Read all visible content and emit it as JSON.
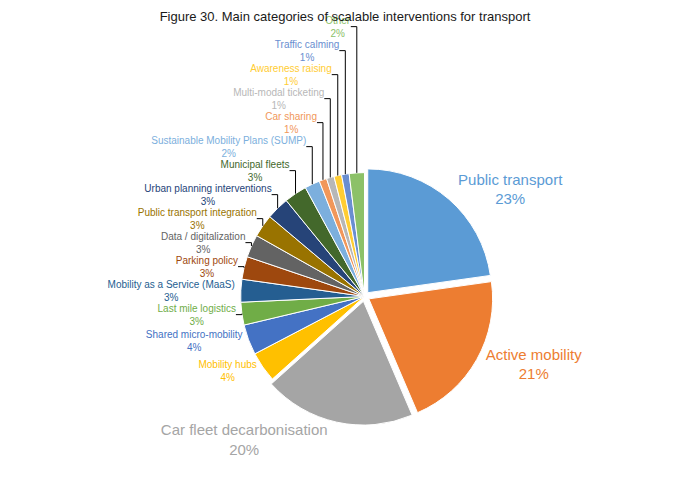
{
  "chart_data": {
    "type": "pie",
    "title": "Figure 30. Main categories of scalable interventions for transport",
    "categories": [
      "Public transport",
      "Active mobility",
      "Car fleet decarbonisation",
      "Mobility hubs",
      "Shared micro-mobility",
      "Last mile logistics",
      "Mobility as a Service (MaaS)",
      "Parking policy",
      "Data / digitalization",
      "Public transport integration",
      "Urban planning interventions",
      "Municipal fleets",
      "Sustainable Mobility Plans (SUMP)",
      "Car sharing",
      "Multi-modal ticketing",
      "Awareness raising",
      "Traffic calming",
      "Other"
    ],
    "values": [
      23,
      21,
      20,
      4,
      4,
      3,
      3,
      3,
      3,
      3,
      3,
      3,
      2,
      1,
      1,
      1,
      1,
      2
    ],
    "value_labels": [
      "23%",
      "21%",
      "20%",
      "4%",
      "4%",
      "3%",
      "3%",
      "3%",
      "3%",
      "3%",
      "3%",
      "3%",
      "2%",
      "1%",
      "1%",
      "1%",
      "1%",
      "2%"
    ],
    "colors": [
      "#5b9bd5",
      "#ed7d31",
      "#a5a5a5",
      "#ffc000",
      "#4472c4",
      "#70ad47",
      "#255e91",
      "#9e480e",
      "#636363",
      "#997300",
      "#264478",
      "#43682b",
      "#7cafdd",
      "#f1975a",
      "#b7b7b7",
      "#ffcd33",
      "#698ed0",
      "#8cc168"
    ],
    "data_labels": true
  }
}
